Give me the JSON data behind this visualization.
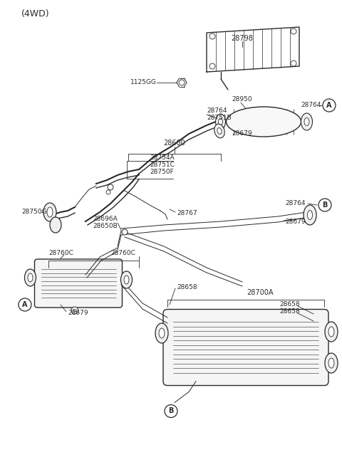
{
  "bg_color": "#ffffff",
  "line_color": "#2a2a2a",
  "figsize": [
    4.8,
    6.56
  ],
  "dpi": 100,
  "header": "(4WD)",
  "parts": {
    "shield_label": "28798",
    "bolt_label": "1125GG",
    "cat_label_A": "28764",
    "cat_label_950": "28950",
    "cat_label_764": "28764",
    "cat_label_751B": "28751B",
    "manifold_label": "28600",
    "label_754A": "28754A",
    "label_751C": "28751C",
    "label_750F": "28750F",
    "label_750G": "28750G",
    "label_679_1": "28679",
    "label_767": "28767",
    "label_764_B": "28764",
    "label_696A": "28696A",
    "label_650B": "28650B",
    "label_679_2": "28679",
    "label_760C_1": "28760C",
    "label_760C_2": "28760C",
    "label_700A": "28700A",
    "label_658_1": "28658",
    "label_658_2": "28658",
    "label_658_3": "28658",
    "label_679_3": "28679"
  }
}
